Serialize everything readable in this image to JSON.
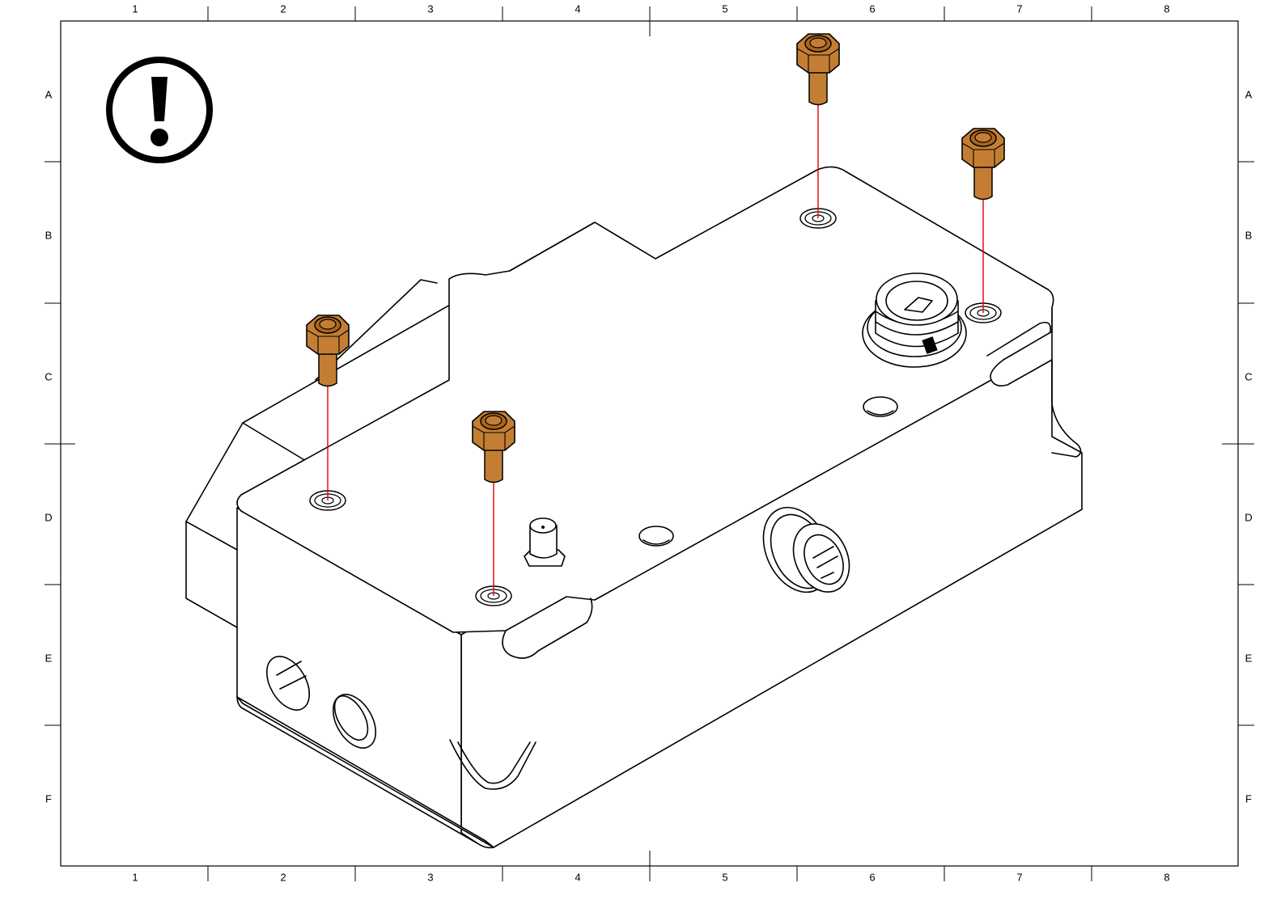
{
  "frame": {
    "columns": [
      "1",
      "2",
      "3",
      "4",
      "5",
      "6",
      "7",
      "8"
    ],
    "rows": [
      "A",
      "B",
      "C",
      "D",
      "E",
      "F"
    ]
  },
  "icons": {
    "warning": "exclamation-circle-icon",
    "screw": "socket-head-cap-screw",
    "guide": "assembly-guide-line"
  },
  "colors": {
    "screw": "#C47E34",
    "screw_shadow": "#A9661F",
    "guide_line": "#E00000",
    "line": "#000000"
  },
  "screws": [
    {
      "name": "screw-top-rear"
    },
    {
      "name": "screw-right"
    },
    {
      "name": "screw-left"
    },
    {
      "name": "screw-front"
    }
  ]
}
